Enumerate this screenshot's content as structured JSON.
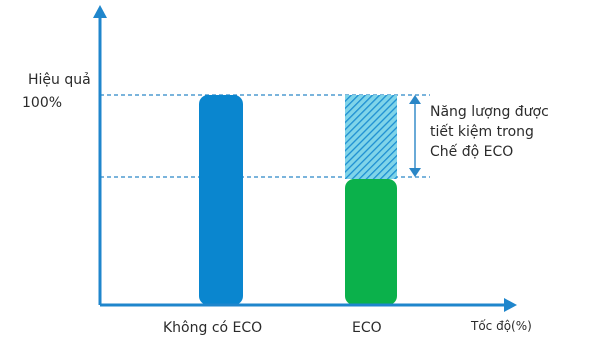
{
  "y_axis": {
    "label": "Hiệu quả",
    "level_label": "100%"
  },
  "x_axis": {
    "label": "Tốc độ(%)"
  },
  "bars": [
    {
      "label": "Không có ECO",
      "level": 1.0,
      "color": "#0a86cf"
    },
    {
      "label": "ECO",
      "level": 0.6,
      "color": "#0bb14b"
    }
  ],
  "savings": {
    "lines": [
      "Năng lượng được",
      "tiết kiệm trong",
      "Chế độ ECO"
    ],
    "hatch_color": "#1d8fd2",
    "hatch_background": "#7fd4e9"
  },
  "colors": {
    "axis": "#1f86cc",
    "guide": "#2a86c6",
    "text": "#2b2b2b"
  }
}
